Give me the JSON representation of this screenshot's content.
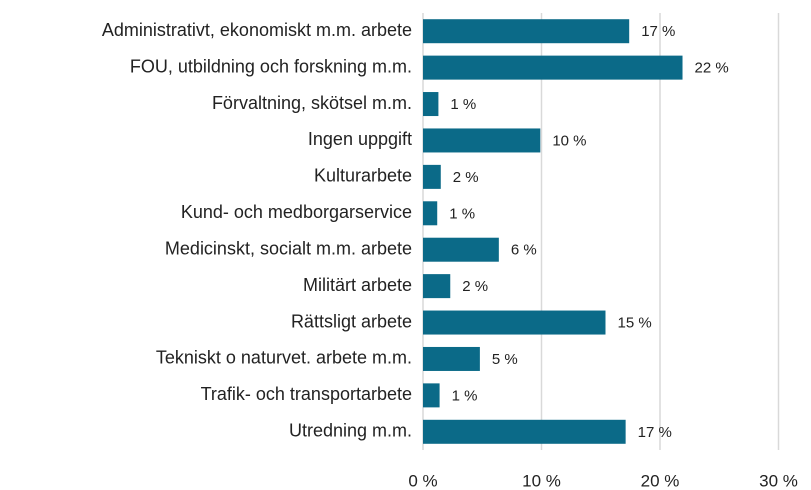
{
  "chart_data": {
    "type": "barh",
    "categories": [
      "Administrativt, ekonomiskt m.m. arbete",
      "FOU, utbildning och forskning m.m.",
      "Förvaltning, skötsel m.m.",
      "Ingen uppgift",
      "Kulturarbete",
      "Kund- och medborgarservice",
      "Medicinskt, socialt m.m. arbete",
      "Militärt arbete",
      "Rättsligt arbete",
      "Tekniskt o naturvet. arbete m.m.",
      "Trafik- och transportarbete",
      "Utredning m.m."
    ],
    "values": [
      17.4,
      21.9,
      1.3,
      9.9,
      1.5,
      1.2,
      6.4,
      2.3,
      15.4,
      4.8,
      1.4,
      17.1
    ],
    "value_labels": [
      "17 %",
      "22 %",
      "1 %",
      "10 %",
      "2 %",
      "1 %",
      "6 %",
      "2 %",
      "15 %",
      "5 %",
      "1 %",
      "17 %"
    ],
    "color": "#0b6a88",
    "xlim": [
      0,
      30
    ],
    "xticks": [
      {
        "value": 0,
        "label": "0 %"
      },
      {
        "value": 10,
        "label": "10 %"
      },
      {
        "value": 20,
        "label": "20 %"
      },
      {
        "value": 30,
        "label": "30 %"
      }
    ],
    "grid": true
  }
}
